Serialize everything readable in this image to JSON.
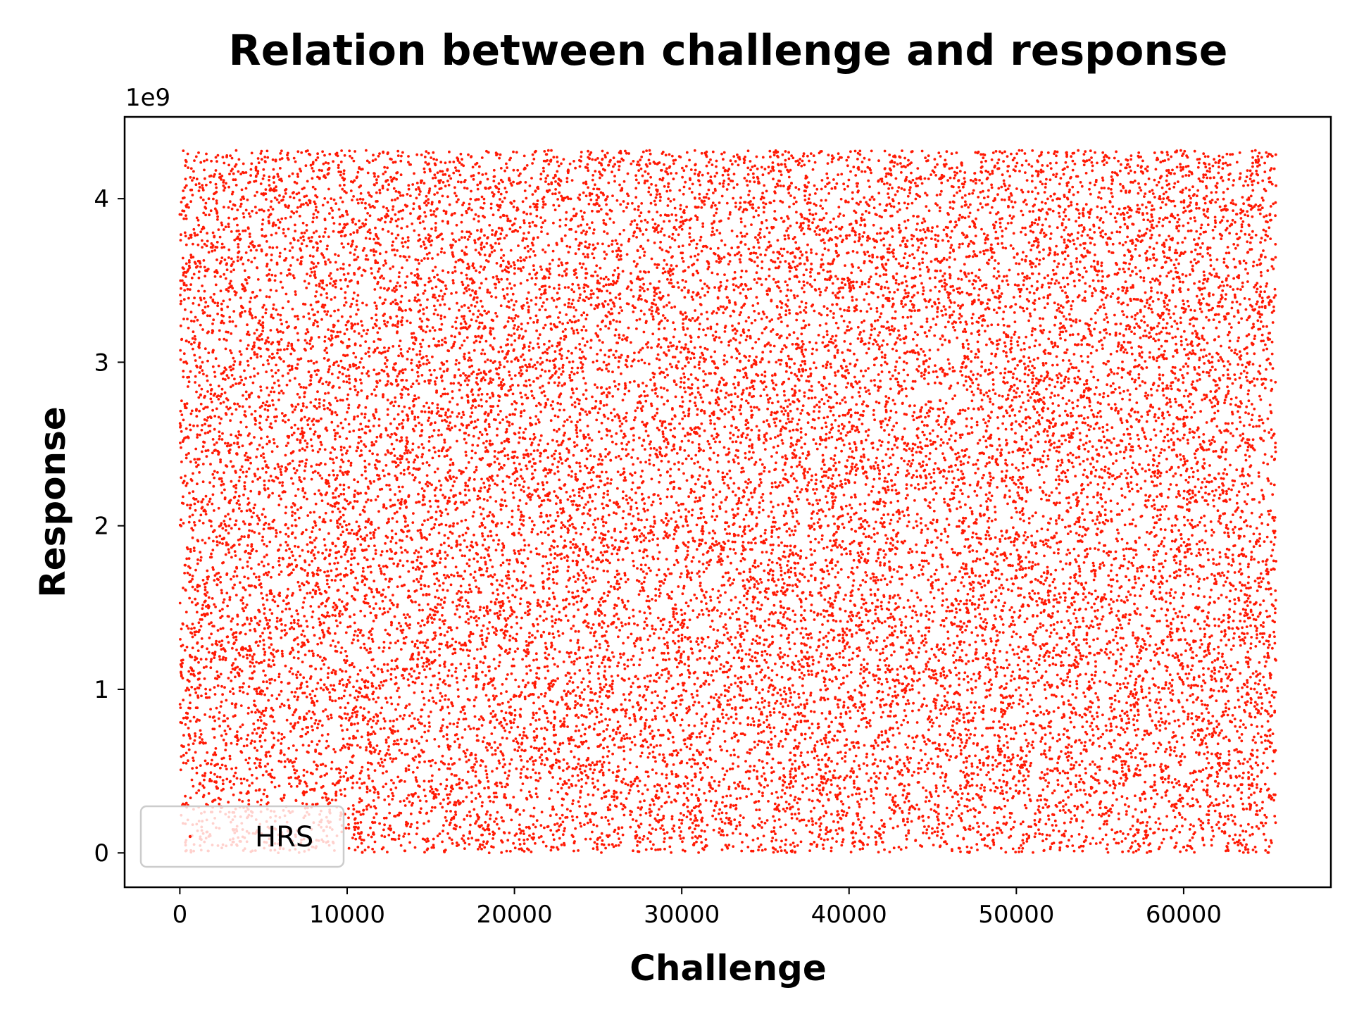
{
  "chart_data": {
    "type": "scatter",
    "title": "Relation between challenge and response",
    "xlabel": "Challenge",
    "ylabel": "Response",
    "y_offset_text": "1e9",
    "xlim": [
      -3300,
      68800
    ],
    "ylim": [
      -0.21,
      4.5
    ],
    "y_scale_factor": 1000000000,
    "xticks": [
      0,
      10000,
      20000,
      30000,
      40000,
      50000,
      60000
    ],
    "xtick_labels": [
      "0",
      "10000",
      "20000",
      "30000",
      "40000",
      "50000",
      "60000"
    ],
    "yticks": [
      0,
      1,
      2,
      3,
      4
    ],
    "ytick_labels": [
      "0",
      "1",
      "2",
      "3",
      "4"
    ],
    "grid": false,
    "legend_position": "lower-left",
    "series": [
      {
        "name": "HRS",
        "color": "#ff1a05",
        "marker": "point",
        "distribution": "uniform",
        "x_range": [
          0,
          65535
        ],
        "y_range": [
          0,
          4294967295
        ],
        "approx_point_count": 65536,
        "rendered_sample_points": 24000
      }
    ]
  }
}
